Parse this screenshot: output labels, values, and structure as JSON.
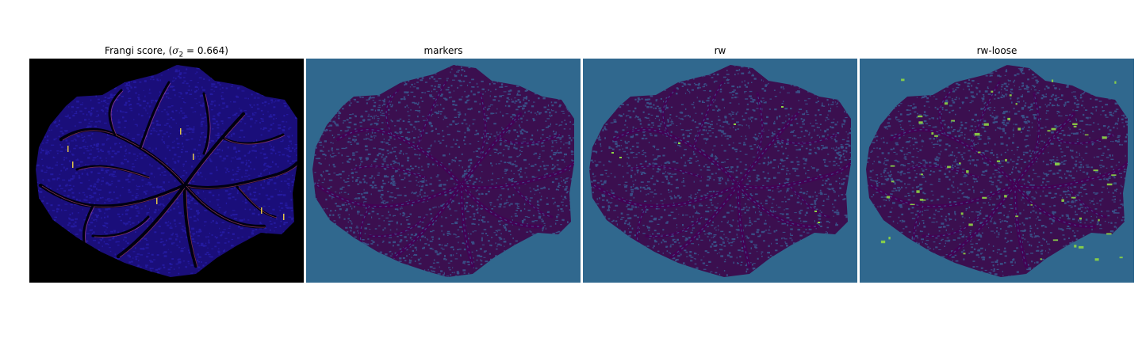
{
  "panels": [
    {
      "title_prefix": "Frangi score, (",
      "title_math": "σ",
      "title_sub": "2",
      "title_suffix": " = 0.664)"
    },
    {
      "title": "markers"
    },
    {
      "title": "rw"
    },
    {
      "title": "rw-loose"
    }
  ],
  "colors": {
    "frangi_bg": "#000000",
    "frangi_tissue": "#1a0e7a",
    "frangi_texture": "#2a1fb0",
    "frangi_vessel": "#000010",
    "frangi_highlight": "#e05a8a",
    "frangi_bright": "#f6d743",
    "seg_bg": "#30688e",
    "seg_tissue": "#3b0f4f",
    "seg_texture": "#3a5a8f",
    "seg_vessel": "#440154",
    "seg_highlight": "#8fd744"
  }
}
